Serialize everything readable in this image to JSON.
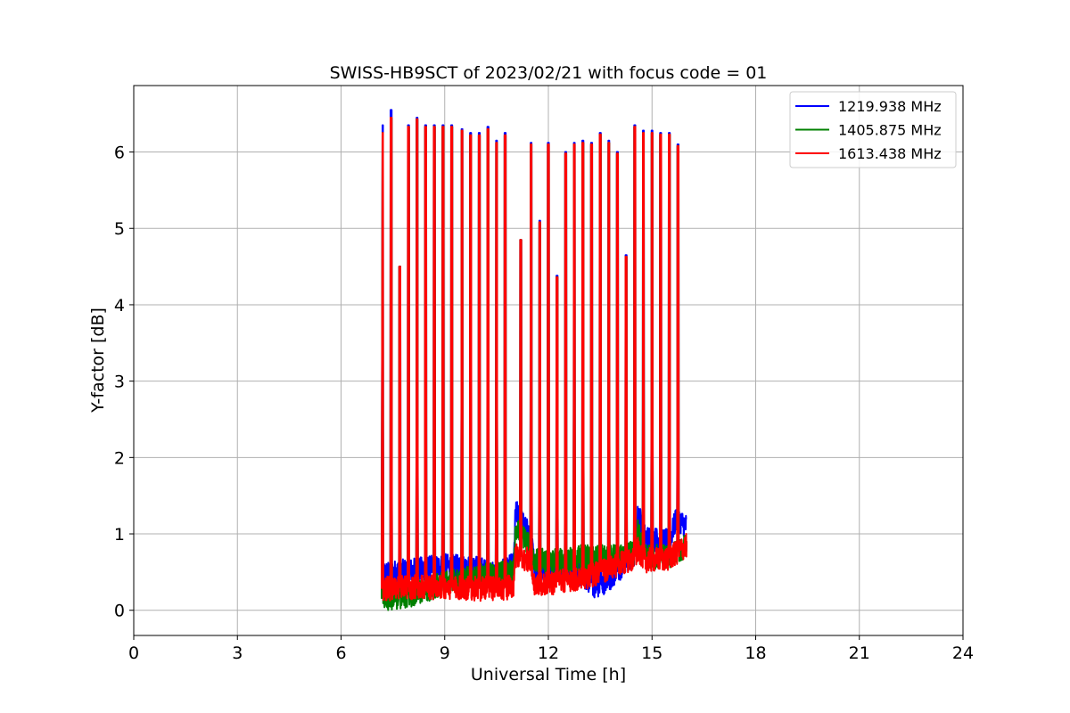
{
  "chart_data": {
    "type": "line",
    "title": "SWISS-HB9SCT of 2023/02/21 with focus code = 01",
    "xlabel": "Universal Time [h]",
    "ylabel": "Y-factor [dB]",
    "xlim": [
      0,
      24
    ],
    "ylim": [
      -0.33,
      6.87
    ],
    "xticks": [
      0,
      3,
      6,
      9,
      12,
      15,
      18,
      21,
      24
    ],
    "yticks": [
      0,
      1,
      2,
      3,
      4,
      5,
      6
    ],
    "grid": true,
    "legend_position": "top-right",
    "data_range_hours": [
      7.2,
      16.0
    ],
    "spike_times": [
      7.2,
      7.45,
      7.7,
      7.95,
      8.2,
      8.45,
      8.7,
      8.95,
      9.2,
      9.5,
      9.75,
      10.0,
      10.25,
      10.5,
      10.75,
      11.2,
      11.5,
      11.75,
      12.0,
      12.25,
      12.5,
      12.75,
      13.0,
      13.25,
      13.5,
      13.75,
      14.0,
      14.25,
      14.5,
      14.75,
      15.0,
      15.25,
      15.5,
      15.75
    ],
    "series": [
      {
        "name": "1219.938 MHz",
        "color": "#0000ff",
        "baseline": [
          [
            7.2,
            0.48
          ],
          [
            8.0,
            0.52
          ],
          [
            9.0,
            0.58
          ],
          [
            10.0,
            0.55
          ],
          [
            10.5,
            0.45
          ],
          [
            11.0,
            0.6
          ],
          [
            11.05,
            1.3
          ],
          [
            11.5,
            0.95
          ],
          [
            11.6,
            0.55
          ],
          [
            12.5,
            0.55
          ],
          [
            13.0,
            0.45
          ],
          [
            13.4,
            0.3
          ],
          [
            14.0,
            0.5
          ],
          [
            14.5,
            0.75
          ],
          [
            14.6,
            1.3
          ],
          [
            14.8,
            0.95
          ],
          [
            15.5,
            0.9
          ],
          [
            15.7,
            1.2
          ],
          [
            16.0,
            1.1
          ]
        ],
        "spike_peaks": [
          6.35,
          6.55,
          4.5,
          6.35,
          6.45,
          6.35,
          6.35,
          6.35,
          6.35,
          6.3,
          6.25,
          6.25,
          6.33,
          6.15,
          6.25,
          4.85,
          6.12,
          5.1,
          6.12,
          4.38,
          6.0,
          6.12,
          6.15,
          6.12,
          6.25,
          6.15,
          6.0,
          4.65,
          6.35,
          6.28,
          6.28,
          6.25,
          6.25,
          6.1
        ]
      },
      {
        "name": "1405.875 MHz",
        "color": "#008000",
        "baseline": [
          [
            7.2,
            0.15
          ],
          [
            8.0,
            0.2
          ],
          [
            9.0,
            0.35
          ],
          [
            10.0,
            0.45
          ],
          [
            11.0,
            0.5
          ],
          [
            11.05,
            1.1
          ],
          [
            11.5,
            0.8
          ],
          [
            11.6,
            0.65
          ],
          [
            12.5,
            0.65
          ],
          [
            13.0,
            0.7
          ],
          [
            14.0,
            0.7
          ],
          [
            14.5,
            0.75
          ],
          [
            14.6,
            1.05
          ],
          [
            14.8,
            0.7
          ],
          [
            15.5,
            0.7
          ],
          [
            16.0,
            0.85
          ]
        ],
        "spike_peaks": [
          6.25,
          6.45,
          4.5,
          6.33,
          6.43,
          6.33,
          6.33,
          6.33,
          6.33,
          6.28,
          6.22,
          6.22,
          6.3,
          6.12,
          6.22,
          4.85,
          6.1,
          5.08,
          6.1,
          4.36,
          5.98,
          6.1,
          6.12,
          6.1,
          6.23,
          6.12,
          5.98,
          4.63,
          6.33,
          6.25,
          6.25,
          6.23,
          6.23,
          6.08
        ]
      },
      {
        "name": "1613.438 MHz",
        "color": "#ff0000",
        "baseline": [
          [
            7.2,
            0.28
          ],
          [
            8.0,
            0.3
          ],
          [
            9.0,
            0.3
          ],
          [
            10.0,
            0.28
          ],
          [
            11.0,
            0.3
          ],
          [
            11.05,
            0.72
          ],
          [
            11.5,
            0.65
          ],
          [
            11.55,
            0.35
          ],
          [
            12.0,
            0.35
          ],
          [
            13.0,
            0.42
          ],
          [
            14.0,
            0.58
          ],
          [
            14.5,
            0.7
          ],
          [
            14.6,
            0.8
          ],
          [
            14.8,
            0.65
          ],
          [
            15.5,
            0.68
          ],
          [
            16.0,
            0.85
          ]
        ],
        "spike_peaks": [
          6.25,
          6.45,
          4.5,
          6.33,
          6.43,
          6.33,
          6.33,
          6.33,
          6.33,
          6.28,
          6.22,
          6.22,
          6.3,
          6.12,
          6.22,
          4.85,
          6.1,
          5.08,
          6.1,
          4.36,
          5.98,
          6.1,
          6.12,
          6.1,
          6.23,
          6.12,
          5.98,
          4.63,
          6.33,
          6.25,
          6.25,
          6.23,
          6.23,
          6.08
        ]
      }
    ]
  }
}
